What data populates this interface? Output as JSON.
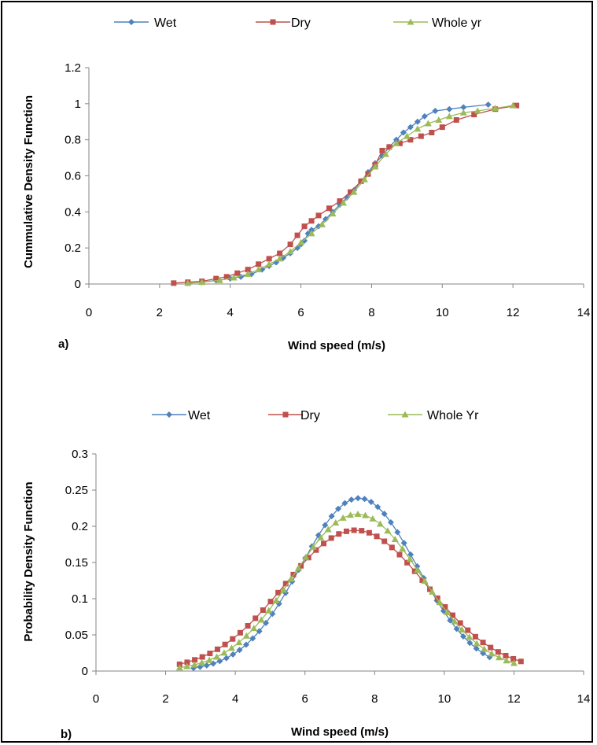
{
  "chart_data": [
    {
      "type": "line",
      "panel_label": "a)",
      "xlabel": "Wind speed (m/s)",
      "ylabel": "Cummulative Density Function",
      "xlim": [
        0,
        14
      ],
      "ylim": [
        0,
        1.2
      ],
      "xticks": [
        0,
        2,
        4,
        6,
        8,
        10,
        12,
        14
      ],
      "yticks": [
        0,
        0.2,
        0.4,
        0.6,
        0.8,
        1,
        1.2
      ],
      "legend_position": "top",
      "series": [
        {
          "name": "Wet",
          "color": "#4F81BD",
          "marker": "diamond",
          "points": [
            [
              2.8,
              0.005
            ],
            [
              3.2,
              0.01
            ],
            [
              3.6,
              0.02
            ],
            [
              4.0,
              0.03
            ],
            [
              4.3,
              0.04
            ],
            [
              4.6,
              0.055
            ],
            [
              4.9,
              0.08
            ],
            [
              5.1,
              0.1
            ],
            [
              5.3,
              0.12
            ],
            [
              5.5,
              0.145
            ],
            [
              5.7,
              0.17
            ],
            [
              5.9,
              0.2
            ],
            [
              6.0,
              0.22
            ],
            [
              6.1,
              0.24
            ],
            [
              6.2,
              0.28
            ],
            [
              6.3,
              0.3
            ],
            [
              6.5,
              0.32
            ],
            [
              6.7,
              0.36
            ],
            [
              6.9,
              0.4
            ],
            [
              7.1,
              0.44
            ],
            [
              7.3,
              0.48
            ],
            [
              7.5,
              0.52
            ],
            [
              7.7,
              0.57
            ],
            [
              7.9,
              0.62
            ],
            [
              8.1,
              0.67
            ],
            [
              8.3,
              0.71
            ],
            [
              8.5,
              0.76
            ],
            [
              8.7,
              0.8
            ],
            [
              8.9,
              0.84
            ],
            [
              9.1,
              0.87
            ],
            [
              9.3,
              0.9
            ],
            [
              9.5,
              0.93
            ],
            [
              9.8,
              0.96
            ],
            [
              10.2,
              0.97
            ],
            [
              10.6,
              0.98
            ],
            [
              11.3,
              0.995
            ]
          ]
        },
        {
          "name": "Dry",
          "color": "#C0504D",
          "marker": "square",
          "points": [
            [
              2.4,
              0.005
            ],
            [
              2.8,
              0.01
            ],
            [
              3.2,
              0.015
            ],
            [
              3.6,
              0.03
            ],
            [
              3.9,
              0.04
            ],
            [
              4.2,
              0.06
            ],
            [
              4.5,
              0.08
            ],
            [
              4.8,
              0.11
            ],
            [
              5.1,
              0.14
            ],
            [
              5.4,
              0.17
            ],
            [
              5.7,
              0.22
            ],
            [
              5.9,
              0.27
            ],
            [
              6.1,
              0.32
            ],
            [
              6.3,
              0.35
            ],
            [
              6.5,
              0.38
            ],
            [
              6.8,
              0.42
            ],
            [
              7.1,
              0.46
            ],
            [
              7.4,
              0.51
            ],
            [
              7.7,
              0.57
            ],
            [
              7.9,
              0.61
            ],
            [
              8.1,
              0.66
            ],
            [
              8.3,
              0.74
            ],
            [
              8.5,
              0.76
            ],
            [
              8.8,
              0.78
            ],
            [
              9.1,
              0.8
            ],
            [
              9.4,
              0.82
            ],
            [
              9.7,
              0.84
            ],
            [
              10.0,
              0.87
            ],
            [
              10.4,
              0.91
            ],
            [
              10.9,
              0.94
            ],
            [
              11.5,
              0.97
            ],
            [
              12.1,
              0.99
            ]
          ]
        },
        {
          "name": "Whole yr",
          "color": "#9BBB59",
          "marker": "triangle",
          "points": [
            [
              2.8,
              0.005
            ],
            [
              3.2,
              0.01
            ],
            [
              3.7,
              0.02
            ],
            [
              4.1,
              0.035
            ],
            [
              4.5,
              0.055
            ],
            [
              4.8,
              0.08
            ],
            [
              5.1,
              0.11
            ],
            [
              5.4,
              0.14
            ],
            [
              5.7,
              0.18
            ],
            [
              6.0,
              0.23
            ],
            [
              6.3,
              0.28
            ],
            [
              6.6,
              0.33
            ],
            [
              6.9,
              0.39
            ],
            [
              7.2,
              0.45
            ],
            [
              7.5,
              0.51
            ],
            [
              7.8,
              0.58
            ],
            [
              8.1,
              0.65
            ],
            [
              8.4,
              0.72
            ],
            [
              8.7,
              0.78
            ],
            [
              9.0,
              0.82
            ],
            [
              9.3,
              0.86
            ],
            [
              9.6,
              0.89
            ],
            [
              9.9,
              0.91
            ],
            [
              10.2,
              0.93
            ],
            [
              10.6,
              0.95
            ],
            [
              11.0,
              0.96
            ],
            [
              11.5,
              0.975
            ],
            [
              12.0,
              0.99
            ]
          ]
        }
      ]
    },
    {
      "type": "line",
      "panel_label": "b)",
      "xlabel": "Wind speed (m/s)",
      "ylabel": "Probability Density Function",
      "xlim": [
        0,
        14
      ],
      "ylim": [
        0,
        0.3
      ],
      "xticks": [
        0,
        2,
        4,
        6,
        8,
        10,
        12,
        14
      ],
      "yticks": [
        0,
        0.05,
        0.1,
        0.15,
        0.2,
        0.25,
        0.3
      ],
      "legend_position": "top",
      "series": [
        {
          "name": "Wet",
          "color": "#4F81BD",
          "marker": "diamond",
          "mean": 7.55,
          "sd": 1.67,
          "xmin": 2.8,
          "xmax": 11.3
        },
        {
          "name": "Dry",
          "color": "#C0504D",
          "marker": "square",
          "mean": 7.45,
          "sd": 2.05,
          "xmin": 2.4,
          "xmax": 12.2
        },
        {
          "name": "Whole Yr",
          "color": "#9BBB59",
          "marker": "triangle",
          "mean": 7.5,
          "sd": 1.84,
          "xmin": 2.4,
          "xmax": 12.0
        }
      ]
    }
  ]
}
